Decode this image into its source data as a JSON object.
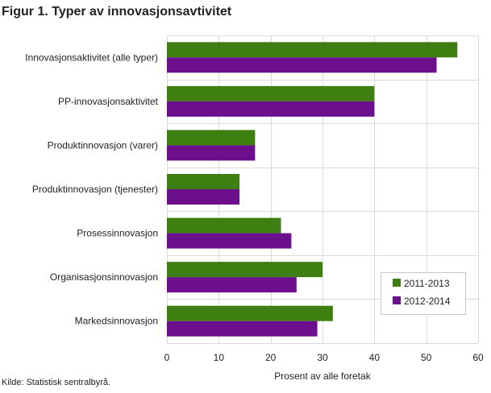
{
  "figure": {
    "title": "Figur 1. Typer av innovasjonsavtivitet",
    "source": "Kilde: Statistisk sentralbyrå."
  },
  "chart_data": {
    "type": "bar",
    "orientation": "horizontal",
    "categories": [
      "Innovasjonsaktivitet (alle typer)",
      "PP-innovasjonsaktivitet",
      "Produktinnovasjon (varer)",
      "Produktinnovasjon (tjenester)",
      "Prosessinnovasjon",
      "Organisasjonsinnovasjon",
      "Markedsinnovasjon"
    ],
    "series": [
      {
        "name": "2011-2013",
        "color": "#3f7f12",
        "values": [
          56,
          40,
          17,
          14,
          22,
          30,
          32
        ]
      },
      {
        "name": "2012-2014",
        "color": "#6b0f8c",
        "values": [
          52,
          40,
          17,
          14,
          24,
          25,
          29
        ]
      }
    ],
    "xlabel": "Prosent av alle foretak",
    "ylabel": "",
    "xlim": [
      0,
      60
    ],
    "xticks": [
      0,
      10,
      20,
      30,
      40,
      50,
      60
    ],
    "grid": true,
    "legend_position": "bottom-right"
  }
}
